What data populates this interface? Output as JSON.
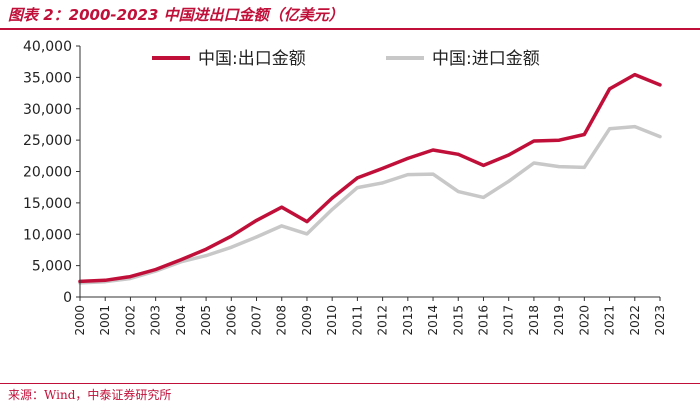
{
  "header": {
    "title": "图表 2：2000-2023 中国进出口金额（亿美元）"
  },
  "footer": {
    "source": "来源：Wind，中泰证券研究所"
  },
  "colors": {
    "export": "#c0103a",
    "import": "#c8c8c8",
    "accent": "#c0103a",
    "axis": "#333333"
  },
  "chart_data": {
    "type": "line",
    "title": "2000-2023 中国进出口金额（亿美元）",
    "xlabel": "",
    "ylabel": "",
    "ylim": [
      0,
      40000
    ],
    "yticks": [
      0,
      5000,
      10000,
      15000,
      20000,
      25000,
      30000,
      35000,
      40000
    ],
    "ytick_labels": [
      "0",
      "5,000",
      "10,000",
      "15,000",
      "20,000",
      "25,000",
      "30,000",
      "35,000",
      "40,000"
    ],
    "grid": false,
    "legend_position": "top",
    "x": [
      "2000",
      "2001",
      "2002",
      "2003",
      "2004",
      "2005",
      "2006",
      "2007",
      "2008",
      "2009",
      "2010",
      "2011",
      "2012",
      "2013",
      "2014",
      "2015",
      "2016",
      "2017",
      "2018",
      "2019",
      "2020",
      "2021",
      "2022",
      "2023"
    ],
    "series": [
      {
        "name": "中国:出口金额",
        "color": "#c0103a",
        "values": [
          2492,
          2661,
          3256,
          4382,
          5933,
          7620,
          9689,
          12200,
          14307,
          12016,
          15778,
          18984,
          20487,
          22090,
          23423,
          22735,
          20976,
          22633,
          24867,
          24995,
          25900,
          33160,
          35444,
          33800
        ]
      },
      {
        "name": "中国:进口金额",
        "color": "#c8c8c8",
        "values": [
          2251,
          2436,
          2952,
          4128,
          5612,
          6600,
          7915,
          9561,
          11326,
          10059,
          13962,
          17435,
          18184,
          19500,
          19592,
          16796,
          15879,
          18438,
          21357,
          20784,
          20660,
          26800,
          27160,
          25568
        ]
      }
    ]
  }
}
